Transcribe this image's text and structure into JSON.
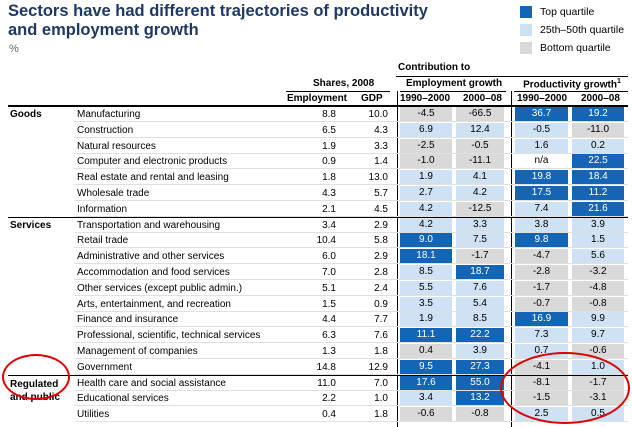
{
  "title": "Sectors have had different trajectories of productivity and employment growth",
  "unit": "%",
  "legend": [
    {
      "label": "Top quartile",
      "color": "#1565b6"
    },
    {
      "label": "25th–50th quartile",
      "color": "#cfe1f4"
    },
    {
      "label": "Bottom quartile",
      "color": "#d9d9d9"
    }
  ],
  "headers": {
    "shares": "Shares, 2008",
    "contribution": "Contribution to",
    "employment_growth": "Employment growth",
    "productivity_growth": "Productivity growth",
    "productivity_footnote": "1",
    "employment": "Employment",
    "gdp": "GDP",
    "p1": "1990–2000",
    "p2": "2000–08",
    "p3": "1990–2000",
    "p4": "2000–08"
  },
  "groups": [
    {
      "label": "Goods",
      "start": 0
    },
    {
      "label": "Services",
      "start": 7
    },
    {
      "label": "Regulated and public",
      "start": 17
    }
  ],
  "rows": [
    {
      "sector": "Manufacturing",
      "emp": "8.8",
      "gdp": "10.0",
      "cells": [
        [
          "-4.5",
          "q3"
        ],
        [
          "-66.5",
          "q3"
        ],
        [
          "36.7",
          "q1"
        ],
        [
          "19.2",
          "q1"
        ]
      ]
    },
    {
      "sector": "Construction",
      "emp": "6.5",
      "gdp": "4.3",
      "cells": [
        [
          "6.9",
          "q2"
        ],
        [
          "12.4",
          "q2"
        ],
        [
          "-0.5",
          "q2"
        ],
        [
          "-11.0",
          "q3"
        ]
      ]
    },
    {
      "sector": "Natural resources",
      "emp": "1.9",
      "gdp": "3.3",
      "cells": [
        [
          "-2.5",
          "q3"
        ],
        [
          "-0.5",
          "q3"
        ],
        [
          "1.6",
          "q2"
        ],
        [
          "0.2",
          "q2"
        ]
      ]
    },
    {
      "sector": "Computer and electronic products",
      "emp": "0.9",
      "gdp": "1.4",
      "cells": [
        [
          "-1.0",
          "q3"
        ],
        [
          "-11.1",
          "q3"
        ],
        [
          "n/a",
          "na"
        ],
        [
          "22.5",
          "q1"
        ]
      ]
    },
    {
      "sector": "Real estate and rental and leasing",
      "emp": "1.8",
      "gdp": "13.0",
      "cells": [
        [
          "1.9",
          "q2"
        ],
        [
          "4.1",
          "q2"
        ],
        [
          "19.8",
          "q1"
        ],
        [
          "18.4",
          "q1"
        ]
      ]
    },
    {
      "sector": "Wholesale trade",
      "emp": "4.3",
      "gdp": "5.7",
      "cells": [
        [
          "2.7",
          "q2"
        ],
        [
          "4.2",
          "q2"
        ],
        [
          "17.5",
          "q1"
        ],
        [
          "11.2",
          "q1"
        ]
      ]
    },
    {
      "sector": "Information",
      "emp": "2.1",
      "gdp": "4.5",
      "cells": [
        [
          "4.2",
          "q2"
        ],
        [
          "-12.5",
          "q3"
        ],
        [
          "7.4",
          "q2"
        ],
        [
          "21.6",
          "q1"
        ]
      ]
    },
    {
      "sector": "Transportation and warehousing",
      "emp": "3.4",
      "gdp": "2.9",
      "cells": [
        [
          "4.2",
          "q2"
        ],
        [
          "3.3",
          "q2"
        ],
        [
          "3.8",
          "q2"
        ],
        [
          "3.9",
          "q2"
        ]
      ]
    },
    {
      "sector": "Retail trade",
      "emp": "10.4",
      "gdp": "5.8",
      "cells": [
        [
          "9.0",
          "q1"
        ],
        [
          "7.5",
          "q2"
        ],
        [
          "9.8",
          "q1"
        ],
        [
          "1.5",
          "q2"
        ]
      ]
    },
    {
      "sector": "Administrative and other services",
      "emp": "6.0",
      "gdp": "2.9",
      "cells": [
        [
          "18.1",
          "q1"
        ],
        [
          "-1.7",
          "q3"
        ],
        [
          "-4.7",
          "q3"
        ],
        [
          "5.6",
          "q2"
        ]
      ]
    },
    {
      "sector": "Accommodation and food services",
      "emp": "7.0",
      "gdp": "2.8",
      "cells": [
        [
          "8.5",
          "q2"
        ],
        [
          "18.7",
          "q1"
        ],
        [
          "-2.8",
          "q3"
        ],
        [
          "-3.2",
          "q3"
        ]
      ]
    },
    {
      "sector": "Other services (except public admin.)",
      "emp": "5.1",
      "gdp": "2.4",
      "cells": [
        [
          "5.5",
          "q2"
        ],
        [
          "7.6",
          "q2"
        ],
        [
          "-1.7",
          "q3"
        ],
        [
          "-4.8",
          "q3"
        ]
      ]
    },
    {
      "sector": "Arts, entertainment, and recreation",
      "emp": "1.5",
      "gdp": "0.9",
      "cells": [
        [
          "3.5",
          "q2"
        ],
        [
          "5.4",
          "q2"
        ],
        [
          "-0.7",
          "q3"
        ],
        [
          "-0.8",
          "q3"
        ]
      ]
    },
    {
      "sector": "Finance and insurance",
      "emp": "4.4",
      "gdp": "7.7",
      "cells": [
        [
          "1.9",
          "q2"
        ],
        [
          "8.5",
          "q2"
        ],
        [
          "16.9",
          "q1"
        ],
        [
          "9.9",
          "q2"
        ]
      ]
    },
    {
      "sector": "Professional, scientific, technical services",
      "emp": "6.3",
      "gdp": "7.6",
      "cells": [
        [
          "11.1",
          "q1"
        ],
        [
          "22.2",
          "q1"
        ],
        [
          "7.3",
          "q2"
        ],
        [
          "9.7",
          "q2"
        ]
      ]
    },
    {
      "sector": "Management of companies",
      "emp": "1.3",
      "gdp": "1.8",
      "cells": [
        [
          "0.4",
          "q3"
        ],
        [
          "3.9",
          "q2"
        ],
        [
          "0.7",
          "q2"
        ],
        [
          "-0.6",
          "q3"
        ]
      ]
    },
    {
      "sector": "Government",
      "emp": "14.8",
      "gdp": "12.9",
      "cells": [
        [
          "9.5",
          "q1"
        ],
        [
          "27.3",
          "q1"
        ],
        [
          "-4.1",
          "q3"
        ],
        [
          "1.0",
          "q2"
        ]
      ]
    },
    {
      "sector": "Health care and social assistance",
      "emp": "11.0",
      "gdp": "7.0",
      "cells": [
        [
          "17.6",
          "q1"
        ],
        [
          "55.0",
          "q1"
        ],
        [
          "-8.1",
          "q3"
        ],
        [
          "-1.7",
          "q3"
        ]
      ]
    },
    {
      "sector": "Educational services",
      "emp": "2.2",
      "gdp": "1.0",
      "cells": [
        [
          "3.4",
          "q2"
        ],
        [
          "13.2",
          "q1"
        ],
        [
          "-1.5",
          "q3"
        ],
        [
          "-3.1",
          "q3"
        ]
      ]
    },
    {
      "sector": "Utilities",
      "emp": "0.4",
      "gdp": "1.8",
      "cells": [
        [
          "-0.6",
          "q3"
        ],
        [
          "-0.8",
          "q3"
        ],
        [
          "2.5",
          "q2"
        ],
        [
          "0.5",
          "q2"
        ]
      ]
    }
  ],
  "highlights": [
    "regulated-and-public-label",
    "regulated-productivity-cells"
  ]
}
